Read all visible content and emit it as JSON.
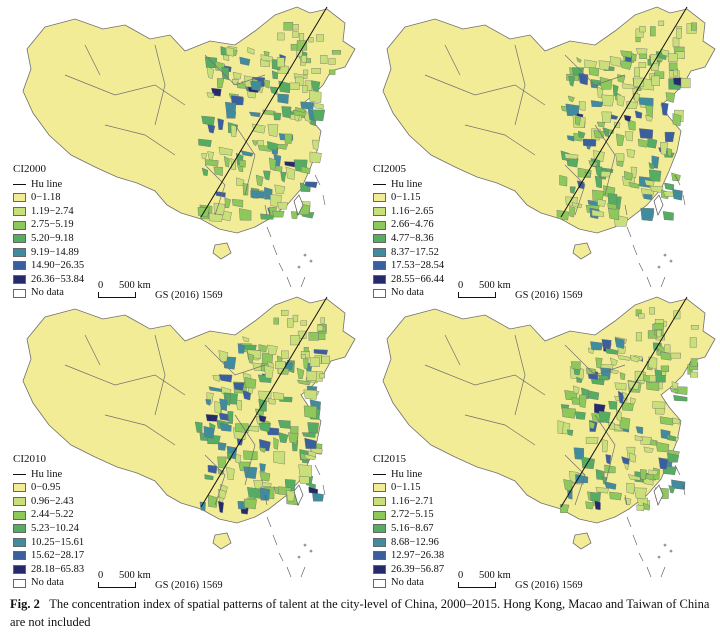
{
  "panels": [
    {
      "id": "CI2000",
      "title": "CI2000",
      "hu_label": "Hu line",
      "classes": [
        {
          "label": "0−1.18",
          "color": "#f3ec97"
        },
        {
          "label": "1.19−2.74",
          "color": "#c9e07a"
        },
        {
          "label": "2.75−5.19",
          "color": "#8dc85b"
        },
        {
          "label": "5.20−9.18",
          "color": "#55ad61"
        },
        {
          "label": "9.19−14.89",
          "color": "#3f8c9e"
        },
        {
          "label": "14.90−26.35",
          "color": "#3a5f9f"
        },
        {
          "label": "26.36−53.84",
          "color": "#252a6b"
        }
      ],
      "nodata": "No data",
      "scale": "0      500 km",
      "gs": "GS (2016) 1569"
    },
    {
      "id": "CI2005",
      "title": "CI2005",
      "hu_label": "Hu line",
      "classes": [
        {
          "label": "0−1.15",
          "color": "#f3ec97"
        },
        {
          "label": "1.16−2.65",
          "color": "#c9e07a"
        },
        {
          "label": "2.66−4.76",
          "color": "#8dc85b"
        },
        {
          "label": "4.77−8.36",
          "color": "#55ad61"
        },
        {
          "label": "8.37−17.52",
          "color": "#3f8c9e"
        },
        {
          "label": "17.53−28.54",
          "color": "#3a5f9f"
        },
        {
          "label": "28.55−66.44",
          "color": "#252a6b"
        }
      ],
      "nodata": "No data",
      "scale": "0      500 km",
      "gs": "GS (2016) 1569"
    },
    {
      "id": "CI2010",
      "title": "CI2010",
      "hu_label": "Hu line",
      "classes": [
        {
          "label": "0−0.95",
          "color": "#f3ec97"
        },
        {
          "label": "0.96−2.43",
          "color": "#c9e07a"
        },
        {
          "label": "2.44−5.22",
          "color": "#8dc85b"
        },
        {
          "label": "5.23−10.24",
          "color": "#55ad61"
        },
        {
          "label": "10.25−15.61",
          "color": "#3f8c9e"
        },
        {
          "label": "15.62−28.17",
          "color": "#3a5f9f"
        },
        {
          "label": "28.18−65.83",
          "color": "#252a6b"
        }
      ],
      "nodata": "No data",
      "scale": "0      500 km",
      "gs": "GS (2016) 1569"
    },
    {
      "id": "CI2015",
      "title": "CI2015",
      "hu_label": "Hu line",
      "classes": [
        {
          "label": "0−1.15",
          "color": "#f3ec97"
        },
        {
          "label": "1.16−2.71",
          "color": "#c9e07a"
        },
        {
          "label": "2.72−5.15",
          "color": "#8dc85b"
        },
        {
          "label": "5.16−8.67",
          "color": "#55ad61"
        },
        {
          "label": "8.68−12.96",
          "color": "#3f8c9e"
        },
        {
          "label": "12.97−26.38",
          "color": "#3a5f9f"
        },
        {
          "label": "26.39−56.87",
          "color": "#252a6b"
        }
      ],
      "nodata": "No data",
      "scale": "0      500 km",
      "gs": "GS (2016) 1569"
    }
  ],
  "caption": {
    "label": "Fig. 2",
    "text": "The concentration index of spatial patterns of talent at the city-level of China, 2000–2015. Hong Kong, Macao and Taiwan of China are not included"
  }
}
